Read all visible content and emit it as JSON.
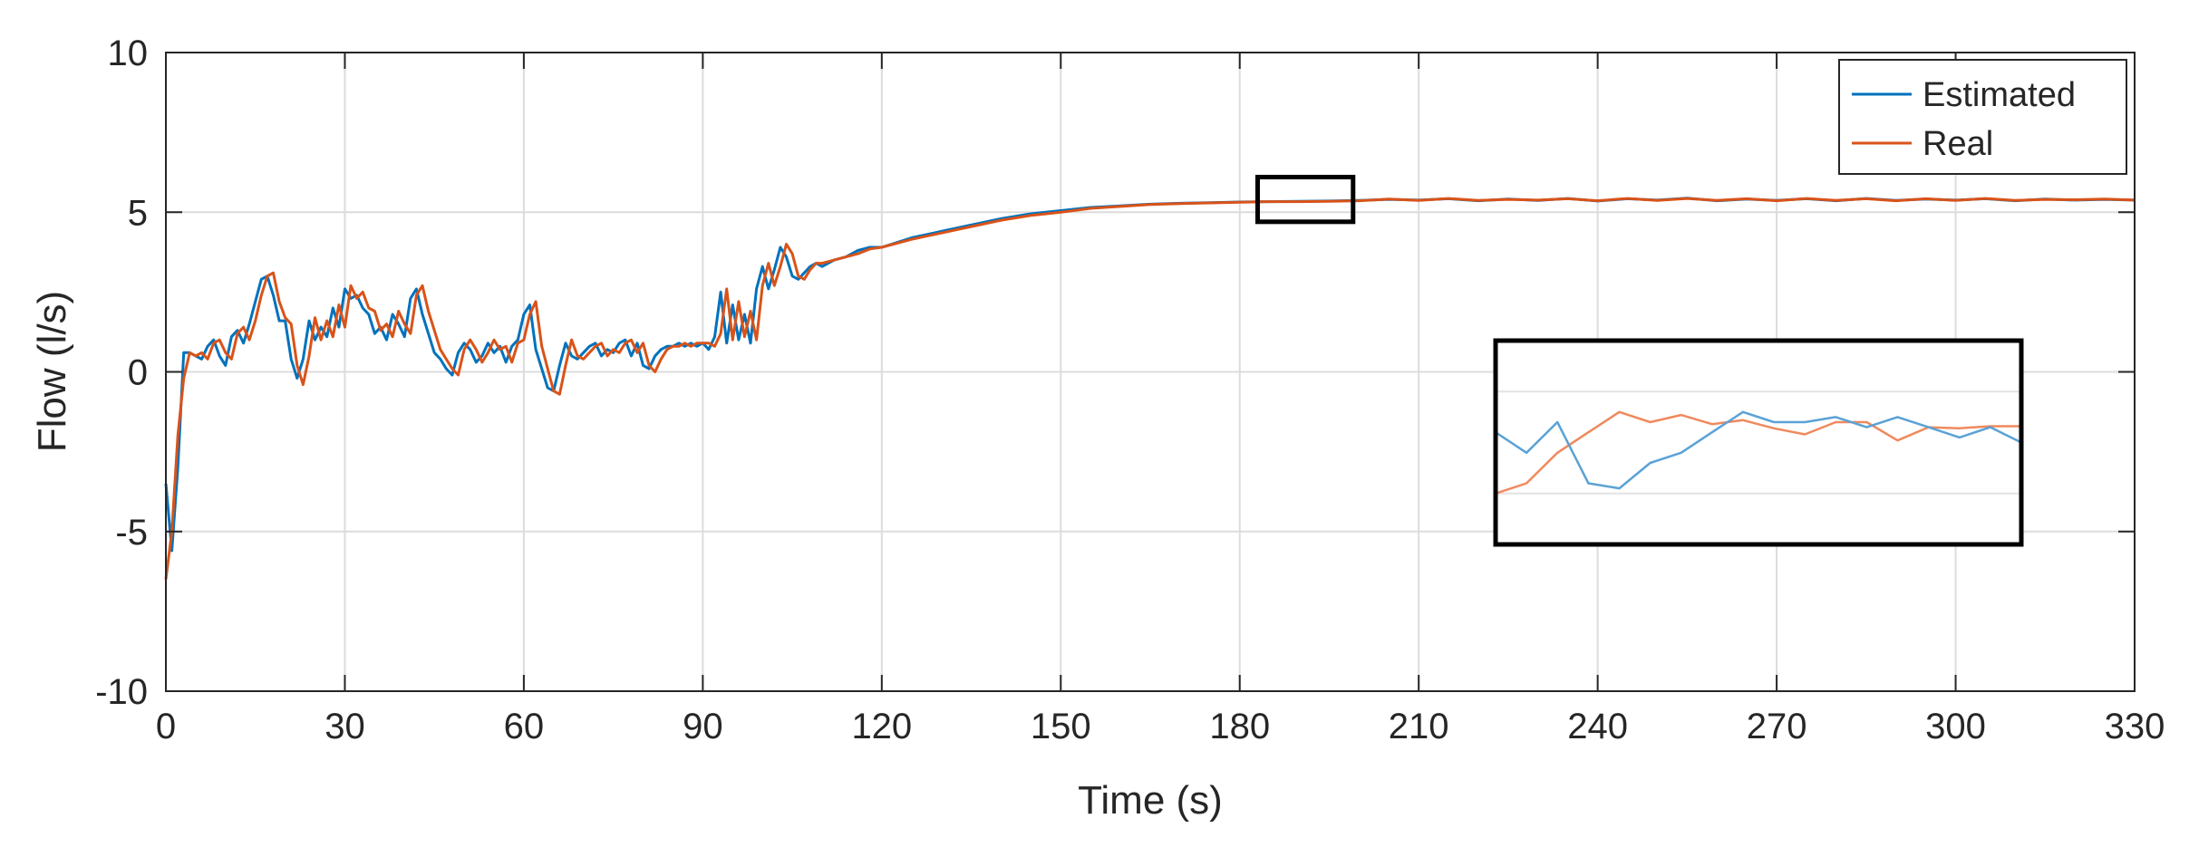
{
  "chart_data": {
    "type": "line",
    "xlabel": "Time (s)",
    "ylabel": "Flow (l/s)",
    "xlim": [
      0,
      330
    ],
    "ylim": [
      -10,
      10
    ],
    "x_ticks": [
      0,
      30,
      60,
      90,
      120,
      150,
      180,
      210,
      240,
      270,
      300,
      330
    ],
    "y_ticks": [
      -10,
      -5,
      0,
      5,
      10
    ],
    "grid": true,
    "legend_position": "top-right",
    "series": [
      {
        "name": "Estimated",
        "color": "#0072BD",
        "points": [
          [
            0,
            -3.5
          ],
          [
            1,
            -5.6
          ],
          [
            2,
            -3.0
          ],
          [
            3,
            0.6
          ],
          [
            4,
            0.6
          ],
          [
            5,
            0.5
          ],
          [
            6,
            0.4
          ],
          [
            7,
            0.8
          ],
          [
            8,
            1.0
          ],
          [
            9,
            0.5
          ],
          [
            10,
            0.2
          ],
          [
            11,
            1.1
          ],
          [
            12,
            1.3
          ],
          [
            13,
            0.9
          ],
          [
            14,
            1.5
          ],
          [
            15,
            2.2
          ],
          [
            16,
            2.9
          ],
          [
            17,
            3.0
          ],
          [
            18,
            2.4
          ],
          [
            19,
            1.6
          ],
          [
            20,
            1.6
          ],
          [
            21,
            0.4
          ],
          [
            22,
            -0.2
          ],
          [
            23,
            0.4
          ],
          [
            24,
            1.6
          ],
          [
            25,
            1.0
          ],
          [
            26,
            1.4
          ],
          [
            27,
            1.1
          ],
          [
            28,
            2.0
          ],
          [
            29,
            1.4
          ],
          [
            30,
            2.6
          ],
          [
            31,
            2.3
          ],
          [
            32,
            2.4
          ],
          [
            33,
            2.0
          ],
          [
            34,
            1.8
          ],
          [
            35,
            1.2
          ],
          [
            36,
            1.4
          ],
          [
            37,
            1.0
          ],
          [
            38,
            1.8
          ],
          [
            39,
            1.5
          ],
          [
            40,
            1.1
          ],
          [
            41,
            2.3
          ],
          [
            42,
            2.6
          ],
          [
            43,
            1.8
          ],
          [
            44,
            1.2
          ],
          [
            45,
            0.6
          ],
          [
            46,
            0.4
          ],
          [
            47,
            0.1
          ],
          [
            48,
            -0.1
          ],
          [
            49,
            0.6
          ],
          [
            50,
            0.9
          ],
          [
            51,
            0.7
          ],
          [
            52,
            0.3
          ],
          [
            53,
            0.5
          ],
          [
            54,
            0.9
          ],
          [
            55,
            0.6
          ],
          [
            56,
            0.8
          ],
          [
            57,
            0.3
          ],
          [
            58,
            0.8
          ],
          [
            59,
            1.0
          ],
          [
            60,
            1.8
          ],
          [
            61,
            2.1
          ],
          [
            62,
            0.7
          ],
          [
            63,
            0.1
          ],
          [
            64,
            -0.5
          ],
          [
            65,
            -0.6
          ],
          [
            66,
            0.2
          ],
          [
            67,
            0.9
          ],
          [
            68,
            0.5
          ],
          [
            69,
            0.4
          ],
          [
            70,
            0.6
          ],
          [
            71,
            0.8
          ],
          [
            72,
            0.9
          ],
          [
            73,
            0.5
          ],
          [
            74,
            0.7
          ],
          [
            75,
            0.6
          ],
          [
            76,
            0.9
          ],
          [
            77,
            1.0
          ],
          [
            78,
            0.5
          ],
          [
            79,
            0.9
          ],
          [
            80,
            0.2
          ],
          [
            81,
            0.1
          ],
          [
            82,
            0.5
          ],
          [
            83,
            0.7
          ],
          [
            84,
            0.8
          ],
          [
            85,
            0.8
          ],
          [
            86,
            0.9
          ],
          [
            87,
            0.8
          ],
          [
            88,
            0.9
          ],
          [
            89,
            0.8
          ],
          [
            90,
            0.9
          ],
          [
            91,
            0.7
          ],
          [
            92,
            1.1
          ],
          [
            93,
            2.5
          ],
          [
            94,
            0.9
          ],
          [
            95,
            2.1
          ],
          [
            96,
            1.0
          ],
          [
            97,
            1.8
          ],
          [
            98,
            0.9
          ],
          [
            99,
            2.6
          ],
          [
            100,
            3.3
          ],
          [
            101,
            2.6
          ],
          [
            102,
            3.2
          ],
          [
            103,
            3.9
          ],
          [
            104,
            3.6
          ],
          [
            105,
            3.0
          ],
          [
            106,
            2.9
          ],
          [
            107,
            3.1
          ],
          [
            108,
            3.3
          ],
          [
            109,
            3.4
          ],
          [
            110,
            3.3
          ],
          [
            112,
            3.5
          ],
          [
            114,
            3.6
          ],
          [
            116,
            3.8
          ],
          [
            118,
            3.9
          ],
          [
            120,
            3.9
          ],
          [
            125,
            4.2
          ],
          [
            130,
            4.4
          ],
          [
            135,
            4.6
          ],
          [
            140,
            4.8
          ],
          [
            145,
            4.95
          ],
          [
            150,
            5.05
          ],
          [
            155,
            5.15
          ],
          [
            160,
            5.2
          ],
          [
            165,
            5.25
          ],
          [
            170,
            5.28
          ],
          [
            175,
            5.3
          ],
          [
            180,
            5.32
          ],
          [
            185,
            5.33
          ],
          [
            190,
            5.34
          ],
          [
            195,
            5.35
          ],
          [
            200,
            5.37
          ],
          [
            205,
            5.4
          ],
          [
            210,
            5.38
          ],
          [
            215,
            5.42
          ],
          [
            220,
            5.36
          ],
          [
            225,
            5.41
          ],
          [
            230,
            5.37
          ],
          [
            235,
            5.43
          ],
          [
            240,
            5.35
          ],
          [
            245,
            5.42
          ],
          [
            250,
            5.38
          ],
          [
            255,
            5.44
          ],
          [
            260,
            5.36
          ],
          [
            265,
            5.41
          ],
          [
            270,
            5.37
          ],
          [
            275,
            5.42
          ],
          [
            280,
            5.36
          ],
          [
            285,
            5.43
          ],
          [
            290,
            5.37
          ],
          [
            295,
            5.41
          ],
          [
            300,
            5.38
          ],
          [
            305,
            5.42
          ],
          [
            310,
            5.36
          ],
          [
            315,
            5.41
          ],
          [
            320,
            5.38
          ],
          [
            325,
            5.4
          ],
          [
            330,
            5.38
          ]
        ]
      },
      {
        "name": "Real",
        "color": "#D95319",
        "points": [
          [
            0,
            -6.5
          ],
          [
            1,
            -5.0
          ],
          [
            2,
            -2.0
          ],
          [
            3,
            -0.2
          ],
          [
            4,
            0.6
          ],
          [
            5,
            0.5
          ],
          [
            6,
            0.6
          ],
          [
            7,
            0.4
          ],
          [
            8,
            0.9
          ],
          [
            9,
            1.0
          ],
          [
            10,
            0.6
          ],
          [
            11,
            0.4
          ],
          [
            12,
            1.2
          ],
          [
            13,
            1.4
          ],
          [
            14,
            1.0
          ],
          [
            15,
            1.6
          ],
          [
            16,
            2.4
          ],
          [
            17,
            3.0
          ],
          [
            18,
            3.1
          ],
          [
            19,
            2.2
          ],
          [
            20,
            1.7
          ],
          [
            21,
            1.5
          ],
          [
            22,
            0.2
          ],
          [
            23,
            -0.4
          ],
          [
            24,
            0.5
          ],
          [
            25,
            1.7
          ],
          [
            26,
            1.0
          ],
          [
            27,
            1.6
          ],
          [
            28,
            1.1
          ],
          [
            29,
            2.1
          ],
          [
            30,
            1.4
          ],
          [
            31,
            2.7
          ],
          [
            32,
            2.3
          ],
          [
            33,
            2.5
          ],
          [
            34,
            2.0
          ],
          [
            35,
            1.9
          ],
          [
            36,
            1.3
          ],
          [
            37,
            1.5
          ],
          [
            38,
            1.1
          ],
          [
            39,
            1.9
          ],
          [
            40,
            1.5
          ],
          [
            41,
            1.2
          ],
          [
            42,
            2.4
          ],
          [
            43,
            2.7
          ],
          [
            44,
            1.9
          ],
          [
            45,
            1.3
          ],
          [
            46,
            0.7
          ],
          [
            47,
            0.4
          ],
          [
            48,
            0.1
          ],
          [
            49,
            -0.1
          ],
          [
            50,
            0.7
          ],
          [
            51,
            1.0
          ],
          [
            52,
            0.7
          ],
          [
            53,
            0.3
          ],
          [
            54,
            0.6
          ],
          [
            55,
            1.0
          ],
          [
            56,
            0.7
          ],
          [
            57,
            0.8
          ],
          [
            58,
            0.3
          ],
          [
            59,
            0.9
          ],
          [
            60,
            1.0
          ],
          [
            61,
            1.8
          ],
          [
            62,
            2.2
          ],
          [
            63,
            0.8
          ],
          [
            64,
            0.1
          ],
          [
            65,
            -0.6
          ],
          [
            66,
            -0.7
          ],
          [
            67,
            0.2
          ],
          [
            68,
            1.0
          ],
          [
            69,
            0.5
          ],
          [
            70,
            0.4
          ],
          [
            71,
            0.6
          ],
          [
            72,
            0.8
          ],
          [
            73,
            0.9
          ],
          [
            74,
            0.5
          ],
          [
            75,
            0.7
          ],
          [
            76,
            0.6
          ],
          [
            77,
            0.9
          ],
          [
            78,
            1.0
          ],
          [
            79,
            0.6
          ],
          [
            80,
            0.9
          ],
          [
            81,
            0.2
          ],
          [
            82,
            0.0
          ],
          [
            83,
            0.4
          ],
          [
            84,
            0.7
          ],
          [
            85,
            0.8
          ],
          [
            86,
            0.8
          ],
          [
            87,
            0.9
          ],
          [
            88,
            0.8
          ],
          [
            89,
            0.9
          ],
          [
            90,
            0.9
          ],
          [
            91,
            0.9
          ],
          [
            92,
            0.8
          ],
          [
            93,
            1.2
          ],
          [
            94,
            2.6
          ],
          [
            95,
            1.0
          ],
          [
            96,
            2.2
          ],
          [
            97,
            1.1
          ],
          [
            98,
            1.9
          ],
          [
            99,
            1.0
          ],
          [
            100,
            2.7
          ],
          [
            101,
            3.4
          ],
          [
            102,
            2.7
          ],
          [
            103,
            3.3
          ],
          [
            104,
            4.0
          ],
          [
            105,
            3.7
          ],
          [
            106,
            3.0
          ],
          [
            107,
            2.9
          ],
          [
            108,
            3.2
          ],
          [
            109,
            3.4
          ],
          [
            110,
            3.4
          ],
          [
            112,
            3.5
          ],
          [
            114,
            3.6
          ],
          [
            116,
            3.7
          ],
          [
            118,
            3.85
          ],
          [
            120,
            3.9
          ],
          [
            125,
            4.15
          ],
          [
            130,
            4.35
          ],
          [
            135,
            4.55
          ],
          [
            140,
            4.75
          ],
          [
            145,
            4.9
          ],
          [
            150,
            5.0
          ],
          [
            155,
            5.12
          ],
          [
            160,
            5.18
          ],
          [
            165,
            5.24
          ],
          [
            170,
            5.27
          ],
          [
            175,
            5.29
          ],
          [
            180,
            5.31
          ],
          [
            185,
            5.33
          ],
          [
            190,
            5.33
          ],
          [
            195,
            5.34
          ],
          [
            200,
            5.36
          ],
          [
            205,
            5.41
          ],
          [
            210,
            5.37
          ],
          [
            215,
            5.43
          ],
          [
            220,
            5.37
          ],
          [
            225,
            5.4
          ],
          [
            230,
            5.38
          ],
          [
            235,
            5.42
          ],
          [
            240,
            5.36
          ],
          [
            245,
            5.43
          ],
          [
            250,
            5.37
          ],
          [
            255,
            5.43
          ],
          [
            260,
            5.37
          ],
          [
            265,
            5.42
          ],
          [
            270,
            5.36
          ],
          [
            275,
            5.43
          ],
          [
            280,
            5.37
          ],
          [
            285,
            5.42
          ],
          [
            290,
            5.36
          ],
          [
            295,
            5.42
          ],
          [
            300,
            5.37
          ],
          [
            305,
            5.43
          ],
          [
            310,
            5.37
          ],
          [
            315,
            5.4
          ],
          [
            320,
            5.39
          ],
          [
            325,
            5.41
          ],
          [
            330,
            5.38
          ]
        ]
      }
    ],
    "zoom_region": {
      "x": [
        183,
        199
      ],
      "y": [
        4.7,
        6.1
      ]
    },
    "inset": {
      "x_range": [
        183,
        199
      ],
      "y_range": [
        5.25,
        5.45
      ],
      "estimated": [
        5.36,
        5.34,
        5.37,
        5.31,
        5.305,
        5.33,
        5.34,
        5.36,
        5.38,
        5.37,
        5.37,
        5.375,
        5.365,
        5.375,
        5.365,
        5.355,
        5.365,
        5.35
      ],
      "real": [
        5.3,
        5.31,
        5.34,
        5.36,
        5.38,
        5.37,
        5.377,
        5.368,
        5.372,
        5.364,
        5.358,
        5.37,
        5.37,
        5.352,
        5.365,
        5.364,
        5.366,
        5.366
      ]
    }
  }
}
